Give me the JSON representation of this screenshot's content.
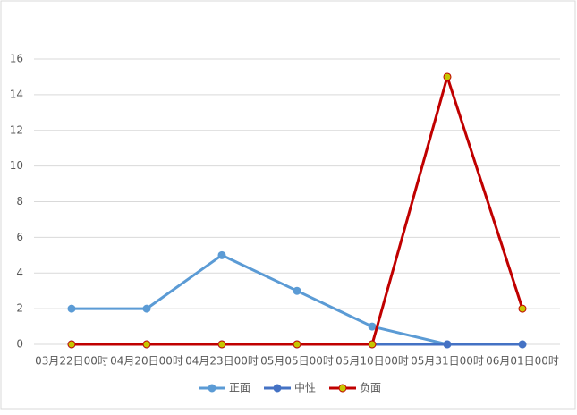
{
  "chart_data": {
    "type": "line",
    "categories": [
      "03月22日00时",
      "04月20日00时",
      "04月23日00时",
      "05月05日00时",
      "05月10日00时",
      "05月31日00时",
      "06月01日00时"
    ],
    "series": [
      {
        "name": "正面",
        "color": "#5b9bd5",
        "marker_color": "#5b9bd5",
        "values": [
          2,
          2,
          5,
          3,
          1,
          0,
          0
        ]
      },
      {
        "name": "中性",
        "color": "#4472c4",
        "marker_color": "#4472c4",
        "values": [
          0,
          0,
          0,
          0,
          0,
          0,
          0
        ]
      },
      {
        "name": "负面",
        "color": "#c00000",
        "marker_color": "#c6c600",
        "values": [
          0,
          0,
          0,
          0,
          0,
          15,
          2
        ]
      }
    ],
    "ylim": [
      0,
      16
    ],
    "yticks": [
      0,
      2,
      4,
      6,
      8,
      10,
      12,
      14,
      16
    ],
    "grid": true,
    "legend": "bottom"
  }
}
